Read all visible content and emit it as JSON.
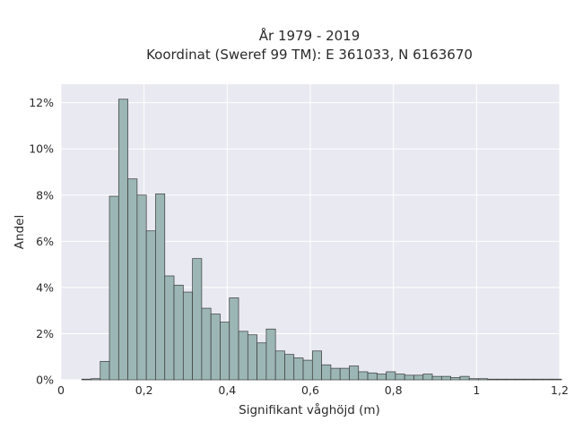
{
  "chart_data": {
    "type": "bar",
    "title": "År 1979 - 2019",
    "subtitle": "Koordinat (Sweref 99 TM): E 361033, N 6163670",
    "xlabel": "Signifikant våghöjd (m)",
    "ylabel": "Andel",
    "xlim": [
      0,
      1.2
    ],
    "ylim": [
      0,
      0.128
    ],
    "x_ticks": [
      0,
      0.2,
      0.4,
      0.6,
      0.8,
      1.0,
      1.2
    ],
    "x_tick_labels": [
      "0",
      "0,2",
      "0,4",
      "0,6",
      "0,8",
      "1",
      "1,2"
    ],
    "y_ticks": [
      0,
      0.02,
      0.04,
      0.06,
      0.08,
      0.1,
      0.12
    ],
    "y_tick_labels": [
      "0%",
      "2%",
      "4%",
      "6%",
      "8%",
      "10%",
      "12%"
    ],
    "bin_start": 0.05,
    "bin_width": 0.0222,
    "values": [
      0.0003,
      0.0005,
      0.008,
      0.0795,
      0.1215,
      0.087,
      0.08,
      0.0645,
      0.0805,
      0.045,
      0.041,
      0.038,
      0.0525,
      0.031,
      0.0285,
      0.025,
      0.0355,
      0.021,
      0.0195,
      0.016,
      0.022,
      0.0125,
      0.011,
      0.0095,
      0.0085,
      0.0125,
      0.0065,
      0.005,
      0.005,
      0.006,
      0.0035,
      0.003,
      0.0025,
      0.0035,
      0.0025,
      0.002,
      0.002,
      0.0025,
      0.0015,
      0.0015,
      0.001,
      0.0015,
      0.0005,
      0.0005,
      0.0003,
      0.0003,
      0.0003,
      0.0003,
      0.0003,
      0.0003,
      0.0003,
      0.0003
    ],
    "grid": true,
    "colors": {
      "bar_fill": "#9bb6b5",
      "bar_edge": "#3a3a3a",
      "plot_bg": "#e9e9f1",
      "grid": "#ffffff"
    }
  }
}
